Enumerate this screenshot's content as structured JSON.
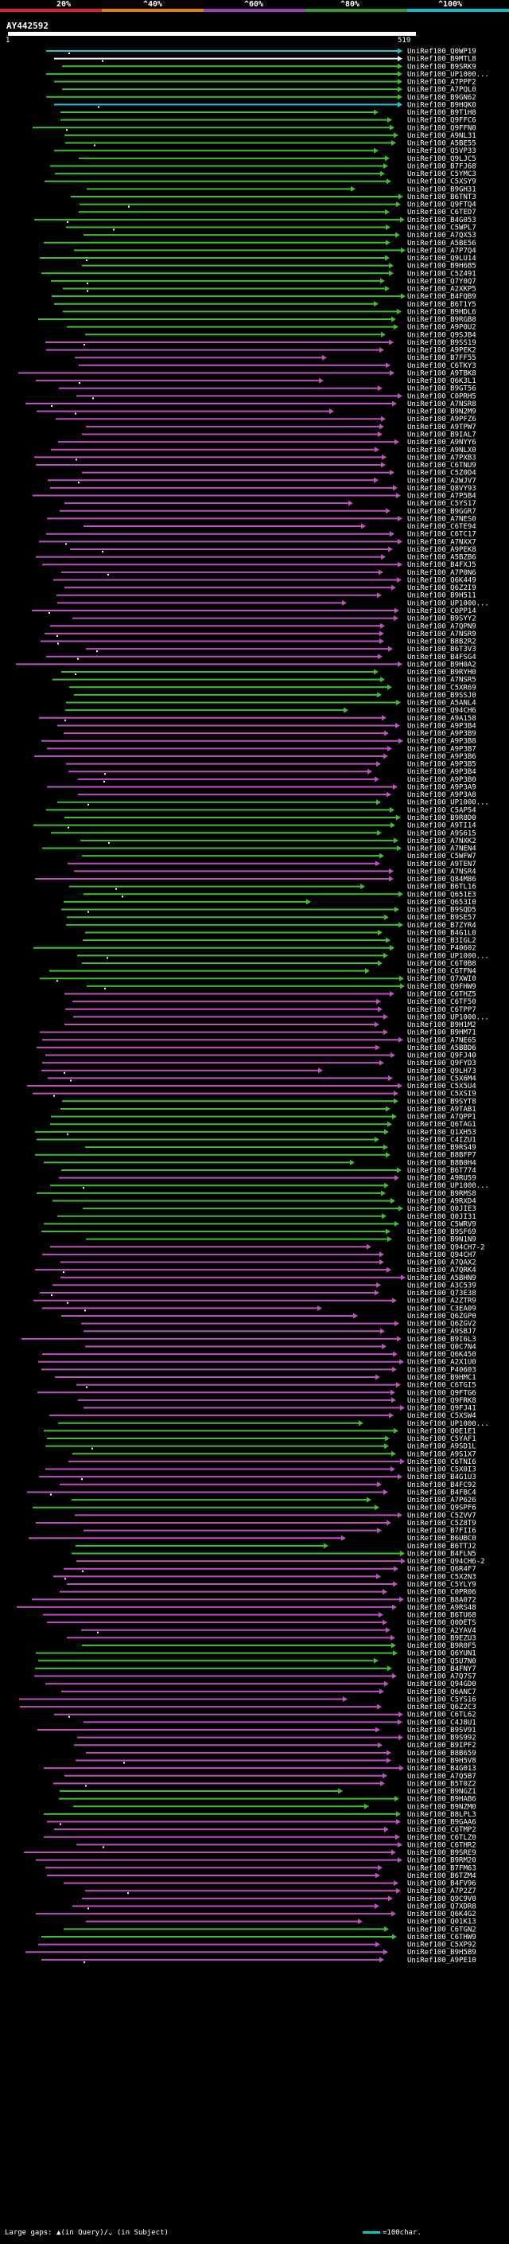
{
  "header": {
    "percent_labels": [
      "20%",
      "^40%",
      "^60%",
      "^80%",
      "^100%"
    ],
    "legend_colors": [
      "#d22",
      "#e07a10",
      "#9b3fb8",
      "#2aa02a",
      "#16b8c8"
    ]
  },
  "query": {
    "id": "AY442592",
    "start": "1",
    "end": "519"
  },
  "colors": {
    "cyan": "#22c8d8",
    "green": "#3fbf2f",
    "magenta": "#c050c0",
    "white": "#f0f0f0"
  },
  "hits": [
    {
      "label": "UniRef100_Q0WP19",
      "color": "cyan"
    },
    {
      "label": "UniRef100_B9MTL8",
      "color": "white"
    },
    {
      "label": "UniRef100_B9SRK9",
      "color": "green"
    },
    {
      "label": "UniRef100_UP1000...",
      "color": "green"
    },
    {
      "label": "UniRef100_A7PPF2",
      "color": "green"
    },
    {
      "label": "UniRef100_A7PQL0",
      "color": "green"
    },
    {
      "label": "UniRef100_B9GN62",
      "color": "green"
    },
    {
      "label": "UniRef100_B9HQK0",
      "color": "cyan"
    },
    {
      "label": "UniRef100_B9T1H8",
      "color": "green"
    },
    {
      "label": "UniRef100_Q9FFC6",
      "color": "green"
    },
    {
      "label": "UniRef100_Q9FFN0",
      "color": "green"
    },
    {
      "label": "UniRef100_A9NL31",
      "color": "green"
    },
    {
      "label": "UniRef100_A5BE55",
      "color": "green"
    },
    {
      "label": "UniRef100_Q5VP33",
      "color": "green"
    },
    {
      "label": "UniRef100_Q9LJC5",
      "color": "green"
    },
    {
      "label": "UniRef100_B7FJ68",
      "color": "green"
    },
    {
      "label": "UniRef100_C5YMC3",
      "color": "green"
    },
    {
      "label": "UniRef100_C5XSY9",
      "color": "green"
    },
    {
      "label": "UniRef100_B9GH31",
      "color": "green"
    },
    {
      "label": "UniRef100_B6TNT3",
      "color": "green"
    },
    {
      "label": "UniRef100_Q9FTQ4",
      "color": "green"
    },
    {
      "label": "UniRef100_C6TED7",
      "color": "green"
    },
    {
      "label": "UniRef100_B4G053",
      "color": "green"
    },
    {
      "label": "UniRef100_C5WPL7",
      "color": "green"
    },
    {
      "label": "UniRef100_A7QX53",
      "color": "green"
    },
    {
      "label": "UniRef100_A5BE56",
      "color": "green"
    },
    {
      "label": "UniRef100_A7P7Q4",
      "color": "green"
    },
    {
      "label": "UniRef100_Q9LU14",
      "color": "green"
    },
    {
      "label": "UniRef100_B9H6B5",
      "color": "green"
    },
    {
      "label": "UniRef100_C5Z491",
      "color": "green"
    },
    {
      "label": "UniRef100_Q7Y0Q7",
      "color": "green"
    },
    {
      "label": "UniRef100_A2XKP5",
      "color": "green"
    },
    {
      "label": "UniRef100_B4FQB9",
      "color": "green"
    },
    {
      "label": "UniRef100_B6T1Y5",
      "color": "green"
    },
    {
      "label": "UniRef100_B9HDL6",
      "color": "green"
    },
    {
      "label": "UniRef100_B9RGB8",
      "color": "green"
    },
    {
      "label": "UniRef100_A9P0U2",
      "color": "green"
    },
    {
      "label": "UniRef100_Q9SJB4",
      "color": "green"
    },
    {
      "label": "UniRef100_B9SS19",
      "color": "magenta"
    },
    {
      "label": "UniRef100_A9PEK2",
      "color": "magenta"
    },
    {
      "label": "UniRef100_B7FF55",
      "color": "magenta"
    },
    {
      "label": "UniRef100_C6TKY3",
      "color": "magenta"
    },
    {
      "label": "UniRef100_A9TBK8",
      "color": "magenta"
    },
    {
      "label": "UniRef100_Q6K3L1",
      "color": "magenta"
    },
    {
      "label": "UniRef100_B9GT56",
      "color": "magenta"
    },
    {
      "label": "UniRef100_C0PRH5",
      "color": "magenta"
    },
    {
      "label": "UniRef100_A7NSR8",
      "color": "magenta"
    },
    {
      "label": "UniRef100_B9N2M9",
      "color": "magenta"
    },
    {
      "label": "UniRef100_A9PFZ6",
      "color": "magenta"
    },
    {
      "label": "UniRef100_A9TPW7",
      "color": "magenta"
    },
    {
      "label": "UniRef100_B9IAL7",
      "color": "magenta"
    },
    {
      "label": "UniRef100_A9NYY6",
      "color": "magenta"
    },
    {
      "label": "UniRef100_A9NLX0",
      "color": "magenta"
    },
    {
      "label": "UniRef100_A7PXB3",
      "color": "magenta"
    },
    {
      "label": "UniRef100_C6TNU9",
      "color": "magenta"
    },
    {
      "label": "UniRef100_C5Z0D4",
      "color": "magenta"
    },
    {
      "label": "UniRef100_A2WJV7",
      "color": "magenta"
    },
    {
      "label": "UniRef100_Q8VY93",
      "color": "magenta"
    },
    {
      "label": "UniRef100_A7P5B4",
      "color": "magenta"
    },
    {
      "label": "UniRef100_C5YS17",
      "color": "magenta"
    },
    {
      "label": "UniRef100_B9GGR7",
      "color": "magenta"
    },
    {
      "label": "UniRef100_A7NES0",
      "color": "magenta"
    },
    {
      "label": "UniRef100_C6TE94",
      "color": "magenta"
    },
    {
      "label": "UniRef100_C6TC17",
      "color": "magenta"
    },
    {
      "label": "UniRef100_A7NXX7",
      "color": "magenta"
    },
    {
      "label": "UniRef100_A9PEK8",
      "color": "magenta"
    },
    {
      "label": "UniRef100_A5BZB6",
      "color": "magenta"
    },
    {
      "label": "UniRef100_B4FXJ5",
      "color": "magenta"
    },
    {
      "label": "UniRef100_A7P0N6",
      "color": "magenta"
    },
    {
      "label": "UniRef100_Q6K449",
      "color": "magenta"
    },
    {
      "label": "UniRef100_Q6Z2I9",
      "color": "magenta"
    },
    {
      "label": "UniRef100_B9H511",
      "color": "magenta"
    },
    {
      "label": "UniRef100_UP1000...",
      "color": "magenta"
    },
    {
      "label": "UniRef100_C0PP14",
      "color": "magenta"
    },
    {
      "label": "UniRef100_B9SYY2",
      "color": "magenta"
    },
    {
      "label": "UniRef100_A7QPN9",
      "color": "magenta"
    },
    {
      "label": "UniRef100_A7NSR9",
      "color": "magenta"
    },
    {
      "label": "UniRef100_B8B2R2",
      "color": "magenta"
    },
    {
      "label": "UniRef100_B6T3V3",
      "color": "magenta"
    },
    {
      "label": "UniRef100_B4FSG4",
      "color": "magenta"
    },
    {
      "label": "UniRef100_B9H0A2",
      "color": "magenta"
    },
    {
      "label": "UniRef100_B9RYH0",
      "color": "green"
    },
    {
      "label": "UniRef100_A7NSR5",
      "color": "green"
    },
    {
      "label": "UniRef100_C5XR69",
      "color": "green"
    },
    {
      "label": "UniRef100_B9SSJ0",
      "color": "green"
    },
    {
      "label": "UniRef100_A5ANL4",
      "color": "green"
    },
    {
      "label": "UniRef100_Q94CH6",
      "color": "green"
    },
    {
      "label": "UniRef100_A9A158",
      "color": "magenta"
    },
    {
      "label": "UniRef100_A9P3B4",
      "color": "magenta"
    },
    {
      "label": "UniRef100_A9P3B9",
      "color": "magenta"
    },
    {
      "label": "UniRef100_A9P3B8",
      "color": "magenta"
    },
    {
      "label": "UniRef100_A9P3B7",
      "color": "magenta"
    },
    {
      "label": "UniRef100_A9P3B6",
      "color": "magenta"
    },
    {
      "label": "UniRef100_A9P3B5",
      "color": "magenta"
    },
    {
      "label": "UniRef100_A9P3B4",
      "color": "magenta"
    },
    {
      "label": "UniRef100_A9P3B0",
      "color": "magenta"
    },
    {
      "label": "UniRef100_A9P3A9",
      "color": "magenta"
    },
    {
      "label": "UniRef100_A9P3A8",
      "color": "magenta"
    },
    {
      "label": "UniRef100_UP1000...",
      "color": "green"
    },
    {
      "label": "UniRef100_C5AP54",
      "color": "green"
    },
    {
      "label": "UniRef100_B9R8D0",
      "color": "green"
    },
    {
      "label": "UniRef100_A9TI14",
      "color": "green"
    },
    {
      "label": "UniRef100_A9S615",
      "color": "green"
    },
    {
      "label": "UniRef100_A7NXK2",
      "color": "green"
    },
    {
      "label": "UniRef100_A7NEN4",
      "color": "green"
    },
    {
      "label": "UniRef100_C5WFW7",
      "color": "green"
    },
    {
      "label": "UniRef100_A9TEN7",
      "color": "magenta"
    },
    {
      "label": "UniRef100_A7NSR4",
      "color": "magenta"
    },
    {
      "label": "UniRef100_Q84M86",
      "color": "magenta"
    },
    {
      "label": "UniRef100_B6TL16",
      "color": "green"
    },
    {
      "label": "UniRef100_Q651E3",
      "color": "green"
    },
    {
      "label": "UniRef100_Q653I0",
      "color": "green"
    },
    {
      "label": "UniRef100_B9SQD5",
      "color": "green"
    },
    {
      "label": "UniRef100_B9SE57",
      "color": "green"
    },
    {
      "label": "UniRef100_B7ZYR4",
      "color": "green"
    },
    {
      "label": "UniRef100_B4G1L0",
      "color": "green"
    },
    {
      "label": "UniRef100_B3IGL2",
      "color": "green"
    },
    {
      "label": "UniRef100_P40602",
      "color": "green"
    },
    {
      "label": "UniRef100_UP1000...",
      "color": "green"
    },
    {
      "label": "UniRef100_C6T0B8",
      "color": "green"
    },
    {
      "label": "UniRef100_C6TFN4",
      "color": "green"
    },
    {
      "label": "UniRef100_Q7XWI0",
      "color": "green"
    },
    {
      "label": "UniRef100_Q9FHW9",
      "color": "green"
    },
    {
      "label": "UniRef100_C6THZ5",
      "color": "magenta"
    },
    {
      "label": "UniRef100_C6TF50",
      "color": "magenta"
    },
    {
      "label": "UniRef100_C6TPP7",
      "color": "magenta"
    },
    {
      "label": "UniRef100_UP1000...",
      "color": "magenta"
    },
    {
      "label": "UniRef100_B9H1M2",
      "color": "magenta"
    },
    {
      "label": "UniRef100_B9HM71",
      "color": "magenta"
    },
    {
      "label": "UniRef100_A7NE65",
      "color": "magenta"
    },
    {
      "label": "UniRef100_A5BBD6",
      "color": "magenta"
    },
    {
      "label": "UniRef100_Q9FJ40",
      "color": "magenta"
    },
    {
      "label": "UniRef100_Q9FYD3",
      "color": "magenta"
    },
    {
      "label": "UniRef100_Q9LH73",
      "color": "magenta"
    },
    {
      "label": "UniRef100_C5X6M4",
      "color": "magenta"
    },
    {
      "label": "UniRef100_C5X5U4",
      "color": "magenta"
    },
    {
      "label": "UniRef100_C5XSI9",
      "color": "magenta"
    },
    {
      "label": "UniRef100_B9SYT8",
      "color": "green"
    },
    {
      "label": "UniRef100_A9TAB1",
      "color": "green"
    },
    {
      "label": "UniRef100_A7QPP1",
      "color": "green"
    },
    {
      "label": "UniRef100_Q6TAG1",
      "color": "green"
    },
    {
      "label": "UniRef100_Q1XH53",
      "color": "green"
    },
    {
      "label": "UniRef100_C4IZU1",
      "color": "green"
    },
    {
      "label": "UniRef100_B9RS49",
      "color": "green"
    },
    {
      "label": "UniRef100_B8BFP7",
      "color": "green"
    },
    {
      "label": "UniRef100_B8B0H4",
      "color": "green"
    },
    {
      "label": "UniRef100_B6T774",
      "color": "green"
    },
    {
      "label": "UniRef100_A9RU59",
      "color": "magenta"
    },
    {
      "label": "UniRef100_UP1000...",
      "color": "green"
    },
    {
      "label": "UniRef100_B9RMS8",
      "color": "green"
    },
    {
      "label": "UniRef100_A9RXD4",
      "color": "green"
    },
    {
      "label": "UniRef100_Q0JIE3",
      "color": "green"
    },
    {
      "label": "UniRef100_Q0JI31",
      "color": "green"
    },
    {
      "label": "UniRef100_C5WRV9",
      "color": "green"
    },
    {
      "label": "UniRef100_B9SF69",
      "color": "green"
    },
    {
      "label": "UniRef100_B9N1N9",
      "color": "green"
    },
    {
      "label": "UniRef100_Q94CH7-2",
      "color": "magenta"
    },
    {
      "label": "UniRef100_Q94CH7",
      "color": "magenta"
    },
    {
      "label": "UniRef100_A7QAX2",
      "color": "magenta"
    },
    {
      "label": "UniRef100_A7QRK4",
      "color": "magenta"
    },
    {
      "label": "UniRef100_A5BHN9",
      "color": "magenta"
    },
    {
      "label": "UniRef100_A3C539",
      "color": "magenta"
    },
    {
      "label": "UniRef100_Q73E38",
      "color": "magenta"
    },
    {
      "label": "UniRef100_A2ZTR9",
      "color": "magenta"
    },
    {
      "label": "UniRef100_C3EA09",
      "color": "magenta"
    },
    {
      "label": "UniRef100_Q6ZGP0",
      "color": "magenta"
    },
    {
      "label": "UniRef100_Q6ZGV2",
      "color": "magenta"
    },
    {
      "label": "UniRef100_A9SBJ7",
      "color": "magenta"
    },
    {
      "label": "UniRef100_B9I6L3",
      "color": "magenta"
    },
    {
      "label": "UniRef100_Q0C7N4",
      "color": "magenta"
    },
    {
      "label": "UniRef100_Q6K450",
      "color": "magenta"
    },
    {
      "label": "UniRef100_A2X1U0",
      "color": "magenta"
    },
    {
      "label": "UniRef100_P40603",
      "color": "magenta"
    },
    {
      "label": "UniRef100_B9HMC1",
      "color": "magenta"
    },
    {
      "label": "UniRef100_C6TGI5",
      "color": "magenta"
    },
    {
      "label": "UniRef100_Q9FTG6",
      "color": "magenta"
    },
    {
      "label": "UniRef100_Q9FRK8",
      "color": "magenta"
    },
    {
      "label": "UniRef100_Q9FJ41",
      "color": "magenta"
    },
    {
      "label": "UniRef100_C5XSW4",
      "color": "magenta"
    },
    {
      "label": "UniRef100_UP1000...",
      "color": "green"
    },
    {
      "label": "UniRef100_Q0E1E1",
      "color": "green"
    },
    {
      "label": "UniRef100_C5YAF1",
      "color": "green"
    },
    {
      "label": "UniRef100_A9SD1L",
      "color": "green"
    },
    {
      "label": "UniRef100_A9S1X7",
      "color": "green"
    },
    {
      "label": "UniRef100_C6TNI6",
      "color": "magenta"
    },
    {
      "label": "UniRef100_C5X0I3",
      "color": "magenta"
    },
    {
      "label": "UniRef100_B4G1U3",
      "color": "magenta"
    },
    {
      "label": "UniRef100_B4FC92",
      "color": "magenta"
    },
    {
      "label": "UniRef100_B4FBC4",
      "color": "magenta"
    },
    {
      "label": "UniRef100_A7P626",
      "color": "green"
    },
    {
      "label": "UniRef100_Q9SPF6",
      "color": "green"
    },
    {
      "label": "UniRef100_C5ZVV7",
      "color": "magenta"
    },
    {
      "label": "UniRef100_C5Z8T9",
      "color": "magenta"
    },
    {
      "label": "UniRef100_B7FII6",
      "color": "magenta"
    },
    {
      "label": "UniRef100_B6UBC0",
      "color": "magenta"
    },
    {
      "label": "UniRef100_B6TTJ2",
      "color": "green"
    },
    {
      "label": "UniRef100_B4FLN5",
      "color": "green"
    },
    {
      "label": "UniRef100_Q94CH6-2",
      "color": "magenta"
    },
    {
      "label": "UniRef100_Q6R4F7",
      "color": "magenta"
    },
    {
      "label": "UniRef100_C5X2N3",
      "color": "magenta"
    },
    {
      "label": "UniRef100_C5YLY9",
      "color": "magenta"
    },
    {
      "label": "UniRef100_C0PR06",
      "color": "magenta"
    },
    {
      "label": "UniRef100_B8A072",
      "color": "magenta"
    },
    {
      "label": "UniRef100_A9RS48",
      "color": "magenta"
    },
    {
      "label": "UniRef100_B6TU68",
      "color": "magenta"
    },
    {
      "label": "UniRef100_Q0DETS",
      "color": "magenta"
    },
    {
      "label": "UniRef100_A2YAV4",
      "color": "magenta"
    },
    {
      "label": "UniRef100_B9EZU3",
      "color": "magenta"
    },
    {
      "label": "UniRef100_B9R0F5",
      "color": "green"
    },
    {
      "label": "UniRef100_Q6YUN1",
      "color": "green"
    },
    {
      "label": "UniRef100_Q5U7N0",
      "color": "green"
    },
    {
      "label": "UniRef100_B4FNY7",
      "color": "green"
    },
    {
      "label": "UniRef100_A7Q7S7",
      "color": "magenta"
    },
    {
      "label": "UniRef100_Q94GD0",
      "color": "magenta"
    },
    {
      "label": "UniRef100_Q6ANC7",
      "color": "magenta"
    },
    {
      "label": "UniRef100_C5YS16",
      "color": "magenta"
    },
    {
      "label": "UniRef100_Q6Z2C3",
      "color": "magenta"
    },
    {
      "label": "UniRef100_C6TL62",
      "color": "magenta"
    },
    {
      "label": "UniRef100_C4J8U1",
      "color": "magenta"
    },
    {
      "label": "UniRef100_B9SV91",
      "color": "magenta"
    },
    {
      "label": "UniRef100_B9S992",
      "color": "magenta"
    },
    {
      "label": "UniRef100_B9IPF2",
      "color": "magenta"
    },
    {
      "label": "UniRef100_B8B659",
      "color": "magenta"
    },
    {
      "label": "UniRef100_B9H5V8",
      "color": "magenta"
    },
    {
      "label": "UniRef100_B4G013",
      "color": "magenta"
    },
    {
      "label": "UniRef100_A7Q5B7",
      "color": "magenta"
    },
    {
      "label": "UniRef100_B5T0Z2",
      "color": "magenta"
    },
    {
      "label": "UniRef100_B9NGZ1",
      "color": "green"
    },
    {
      "label": "UniRef100_B9HAB6",
      "color": "green"
    },
    {
      "label": "UniRef100_B9NZM0",
      "color": "green"
    },
    {
      "label": "UniRef100_B8LPL3",
      "color": "green"
    },
    {
      "label": "UniRef100_B9GAA6",
      "color": "magenta"
    },
    {
      "label": "UniRef100_C6TMP2",
      "color": "magenta"
    },
    {
      "label": "UniRef100_C6TLZ0",
      "color": "magenta"
    },
    {
      "label": "UniRef100_C6THR2",
      "color": "magenta"
    },
    {
      "label": "UniRef100_B9SRE9",
      "color": "magenta"
    },
    {
      "label": "UniRef100_B9RM20",
      "color": "magenta"
    },
    {
      "label": "UniRef100_B7FM63",
      "color": "magenta"
    },
    {
      "label": "UniRef100_B6TZM4",
      "color": "magenta"
    },
    {
      "label": "UniRef100_B4FV96",
      "color": "magenta"
    },
    {
      "label": "UniRef100_A7P2Z7",
      "color": "magenta"
    },
    {
      "label": "UniRef100_Q9C9V0",
      "color": "magenta"
    },
    {
      "label": "UniRef100_Q7XDR8",
      "color": "magenta"
    },
    {
      "label": "UniRef100_Q6K4G2",
      "color": "magenta"
    },
    {
      "label": "UniRef100_Q01K13",
      "color": "magenta"
    },
    {
      "label": "UniRef100_C6TGN2",
      "color": "green"
    },
    {
      "label": "UniRef100_C6THW9",
      "color": "green"
    },
    {
      "label": "UniRef100_C5XP92",
      "color": "magenta"
    },
    {
      "label": "UniRef100_B9H5B9",
      "color": "magenta"
    },
    {
      "label": "UniRef100_A9PE10",
      "color": "magenta"
    }
  ],
  "footer": {
    "gaps_text": "Large gaps: ▲(in Query)/⌄ (in Subject)",
    "scale_text": "=100char."
  }
}
